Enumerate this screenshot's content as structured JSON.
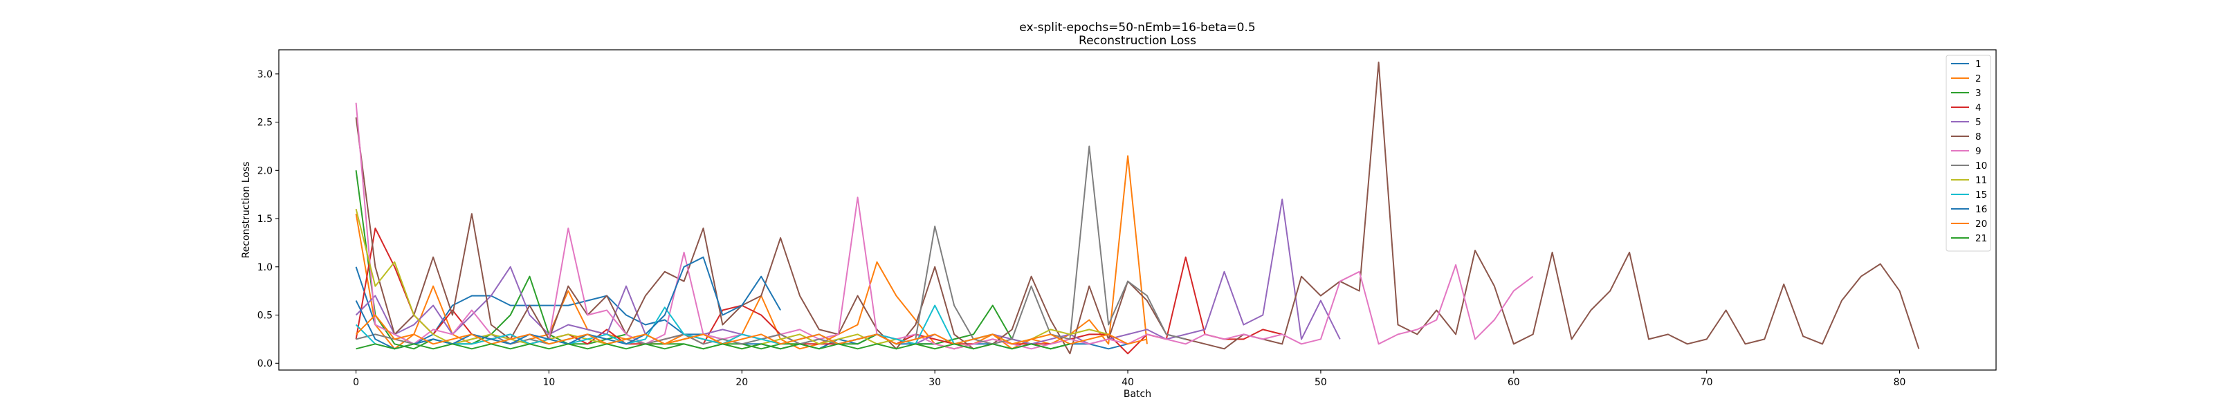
{
  "chart_data": {
    "type": "line",
    "title": [
      "ex-split-epochs=50-nEmb=16-beta=0.5",
      "Reconstruction Loss"
    ],
    "xlabel": "Batch",
    "ylabel": "Reconstruction Loss",
    "xlim": [
      -4,
      85
    ],
    "ylim": [
      -0.07,
      3.25
    ],
    "xticks": [
      0,
      10,
      20,
      30,
      40,
      50,
      60,
      70,
      80
    ],
    "yticks": [
      0.0,
      0.5,
      1.0,
      1.5,
      2.0,
      2.5,
      3.0
    ],
    "grid": false,
    "legend_position": "top-right",
    "series": [
      {
        "name": "1",
        "color": "#1f77b4",
        "values": [
          1.0,
          0.4,
          0.3,
          0.2,
          0.3,
          0.6,
          0.7,
          0.7,
          0.6,
          0.6,
          0.6,
          0.6,
          0.65,
          0.7,
          0.5,
          0.4,
          0.45,
          0.3,
          0.3,
          0.25,
          0.2,
          0.2,
          0.15,
          0.2,
          0.15,
          0.25,
          0.2,
          0.3,
          0.2,
          0.2,
          0.2,
          0.15,
          0.2,
          0.2,
          0.15,
          0.2,
          0.15,
          0.2,
          0.2,
          0.15,
          0.2
        ]
      },
      {
        "name": "2",
        "color": "#ff7f0e",
        "values": [
          1.55,
          0.4,
          0.15,
          0.3,
          0.8,
          0.3,
          0.2,
          0.25,
          0.2,
          0.25,
          0.3,
          0.75,
          0.35,
          0.3,
          0.25,
          0.2,
          0.2,
          0.3,
          0.25,
          0.2,
          0.3,
          0.7,
          0.25,
          0.15,
          0.2,
          0.3,
          0.4,
          1.05,
          0.7,
          0.45,
          0.2,
          0.15,
          0.2,
          0.3,
          0.15,
          0.25,
          0.2,
          0.3,
          0.45,
          0.2,
          2.15,
          0.2
        ]
      },
      {
        "name": "3",
        "color": "#2ca02c",
        "values": [
          2.0,
          0.5,
          0.2,
          0.15,
          0.25,
          0.2,
          0.2,
          0.3,
          0.5,
          0.9,
          0.3,
          0.2,
          0.2,
          0.25,
          0.3,
          0.2,
          0.2,
          0.2,
          0.15,
          0.2,
          0.2,
          0.15,
          0.2,
          0.2,
          0.25,
          0.2,
          0.2,
          0.3,
          0.25,
          0.2,
          0.2,
          0.25,
          0.3,
          0.6,
          0.25,
          0.2,
          0.15,
          0.2
        ]
      },
      {
        "name": "4",
        "color": "#d62728",
        "values": [
          0.25,
          1.4,
          1.0,
          0.5,
          0.3,
          0.55,
          0.3,
          0.25,
          0.3,
          0.2,
          0.25,
          0.3,
          0.2,
          0.35,
          0.2,
          0.2,
          0.25,
          0.3,
          0.2,
          0.55,
          0.6,
          0.5,
          0.3,
          0.2,
          0.2,
          0.2,
          0.25,
          0.3,
          0.2,
          0.3,
          0.25,
          0.2,
          0.2,
          0.25,
          0.2,
          0.2,
          0.2,
          0.25,
          0.3,
          0.3,
          0.1,
          0.3,
          0.25,
          1.1,
          0.3,
          0.25,
          0.25,
          0.35,
          0.3
        ]
      },
      {
        "name": "5",
        "color": "#9467bd",
        "values": [
          0.5,
          0.7,
          0.3,
          0.4,
          0.6,
          0.3,
          0.5,
          0.7,
          1.0,
          0.5,
          0.3,
          0.4,
          0.35,
          0.3,
          0.8,
          0.3,
          0.2,
          0.25,
          0.3,
          0.35,
          0.3,
          0.25,
          0.3,
          0.2,
          0.25,
          0.2,
          0.25,
          0.3,
          0.25,
          0.2,
          0.3,
          0.2,
          0.25,
          0.3,
          0.25,
          0.2,
          0.25,
          0.3,
          0.2,
          0.25,
          0.3,
          0.35,
          0.25,
          0.3,
          0.35,
          0.95,
          0.4,
          0.5,
          1.7,
          0.25,
          0.65,
          0.25
        ]
      },
      {
        "name": "8",
        "color": "#8c564b",
        "values": [
          2.55,
          1.0,
          0.3,
          0.5,
          1.1,
          0.5,
          1.55,
          0.4,
          0.25,
          0.6,
          0.25,
          0.8,
          0.5,
          0.7,
          0.3,
          0.7,
          0.95,
          0.85,
          1.4,
          0.4,
          0.6,
          0.7,
          1.3,
          0.7,
          0.35,
          0.3,
          0.7,
          0.35,
          0.15,
          0.4,
          1.0,
          0.3,
          0.15,
          0.2,
          0.35,
          0.9,
          0.45,
          0.1,
          0.8,
          0.25,
          0.85,
          0.65,
          0.3,
          0.25,
          0.2,
          0.15,
          0.3,
          0.25,
          0.2,
          0.9,
          0.7,
          0.85,
          0.75,
          3.12,
          0.4,
          0.3,
          0.55,
          0.3,
          1.17,
          0.8,
          0.2,
          0.3,
          1.15,
          0.25,
          0.55,
          0.75,
          1.15,
          0.25,
          0.3,
          0.2,
          0.25,
          0.55,
          0.2,
          0.25,
          0.82,
          0.28,
          0.2,
          0.65,
          0.9,
          1.03,
          0.75,
          0.15
        ]
      },
      {
        "name": "9",
        "color": "#e377c2",
        "values": [
          2.7,
          0.4,
          0.3,
          0.2,
          0.35,
          0.3,
          0.55,
          0.3,
          0.25,
          0.3,
          0.25,
          1.4,
          0.5,
          0.55,
          0.3,
          0.2,
          0.3,
          1.15,
          0.3,
          0.25,
          0.3,
          0.25,
          0.3,
          0.35,
          0.25,
          0.3,
          1.72,
          0.3,
          0.25,
          0.3,
          0.2,
          0.15,
          0.2,
          0.25,
          0.2,
          0.15,
          0.2,
          0.25,
          0.2,
          0.25,
          0.2,
          0.3,
          0.25,
          0.2,
          0.3,
          0.25,
          0.3,
          0.25,
          0.3,
          0.2,
          0.25,
          0.85,
          0.95,
          0.2,
          0.3,
          0.35,
          0.45,
          1.02,
          0.25,
          0.45,
          0.75,
          0.9
        ]
      },
      {
        "name": "10",
        "color": "#7f7f7f",
        "values": [
          0.25,
          0.3,
          0.25,
          0.2,
          0.25,
          0.2,
          0.25,
          0.3,
          0.2,
          0.25,
          0.2,
          0.25,
          0.3,
          0.2,
          0.25,
          0.2,
          0.25,
          0.3,
          0.2,
          0.25,
          0.2,
          0.25,
          0.3,
          0.2,
          0.25,
          0.2,
          0.25,
          0.3,
          0.2,
          0.25,
          1.42,
          0.6,
          0.25,
          0.2,
          0.25,
          0.8,
          0.3,
          0.25,
          2.25,
          0.4,
          0.85,
          0.7,
          0.3,
          0.25
        ]
      },
      {
        "name": "11",
        "color": "#bcbd22",
        "values": [
          1.6,
          0.8,
          1.05,
          0.5,
          0.3,
          0.2,
          0.25,
          0.3,
          0.25,
          0.2,
          0.25,
          0.3,
          0.25,
          0.2,
          0.25,
          0.3,
          0.2,
          0.25,
          0.3,
          0.2,
          0.15,
          0.2,
          0.25,
          0.3,
          0.2,
          0.25,
          0.3,
          0.2,
          0.25,
          0.2,
          0.15,
          0.2,
          0.25,
          0.3,
          0.2,
          0.25,
          0.35,
          0.3,
          0.35,
          0.3
        ]
      },
      {
        "name": "15",
        "color": "#17becf",
        "values": [
          0.4,
          0.2,
          0.15,
          0.2,
          0.25,
          0.2,
          0.2,
          0.25,
          0.3,
          0.2,
          0.25,
          0.2,
          0.25,
          0.3,
          0.2,
          0.25,
          0.58,
          0.3,
          0.25,
          0.2,
          0.3,
          0.25,
          0.2,
          0.25,
          0.3,
          0.2,
          0.25,
          0.3,
          0.25,
          0.2,
          0.6,
          0.2,
          0.25,
          0.3
        ]
      },
      {
        "name": "16",
        "color": "#1f77b4",
        "values": [
          0.65,
          0.25,
          0.15,
          0.2,
          0.25,
          0.2,
          0.3,
          0.25,
          0.2,
          0.3,
          0.25,
          0.2,
          0.3,
          0.25,
          0.2,
          0.3,
          0.5,
          1.0,
          1.1,
          0.5,
          0.6,
          0.9,
          0.55
        ]
      },
      {
        "name": "20",
        "color": "#ff7f0e",
        "values": [
          0.3,
          0.5,
          0.25,
          0.3,
          0.2,
          0.25,
          0.3,
          0.2,
          0.25,
          0.3,
          0.2,
          0.25,
          0.3,
          0.2,
          0.25,
          0.3,
          0.2,
          0.25,
          0.3,
          0.2,
          0.25,
          0.3,
          0.2,
          0.25,
          0.3,
          0.2,
          0.25,
          0.3,
          0.2,
          0.25,
          0.3,
          0.2,
          0.25,
          0.3,
          0.2,
          0.25,
          0.3,
          0.2,
          0.25,
          0.3,
          0.2,
          0.25
        ]
      },
      {
        "name": "21",
        "color": "#2ca02c",
        "values": [
          0.15,
          0.2,
          0.15,
          0.2,
          0.15,
          0.2,
          0.15,
          0.2,
          0.15,
          0.2,
          0.15,
          0.2,
          0.15,
          0.2,
          0.15,
          0.2,
          0.15,
          0.2,
          0.15,
          0.2,
          0.15,
          0.2,
          0.15,
          0.2,
          0.15,
          0.2,
          0.15,
          0.2,
          0.15,
          0.2,
          0.15,
          0.2,
          0.15,
          0.2,
          0.15,
          0.2,
          0.15,
          0.2
        ]
      }
    ]
  }
}
